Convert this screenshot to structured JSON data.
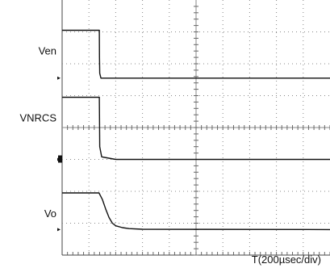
{
  "chart_data": {
    "type": "line",
    "title": "",
    "xlabel": "T(200µsec/div)",
    "ylabel": "",
    "x_unit": "µsec",
    "x_per_div": 200,
    "x_divisions": 10,
    "xlim": [
      0,
      2000
    ],
    "y_divisions": 8,
    "ylim": [
      0,
      8
    ],
    "grid": true,
    "series": [
      {
        "name": "Ven",
        "ground_div": 5.55,
        "x": [
          0,
          278,
          279,
          281,
          290,
          400,
          2000
        ],
        "y": [
          7.05,
          7.05,
          6.2,
          5.7,
          5.55,
          5.55,
          5.55
        ]
      },
      {
        "name": "VNRCS",
        "ground_div": 3.0,
        "x": [
          0,
          278,
          279,
          281,
          295,
          400,
          2000
        ],
        "y": [
          4.95,
          4.95,
          4.4,
          3.4,
          3.08,
          3.0,
          3.0
        ]
      },
      {
        "name": "Vo",
        "ground_div": 0.8,
        "x": [
          0,
          275,
          300,
          325,
          350,
          375,
          400,
          450,
          500,
          600,
          2000
        ],
        "y": [
          1.95,
          1.95,
          1.75,
          1.45,
          1.18,
          1.0,
          0.92,
          0.86,
          0.83,
          0.81,
          0.8
        ]
      }
    ]
  }
}
